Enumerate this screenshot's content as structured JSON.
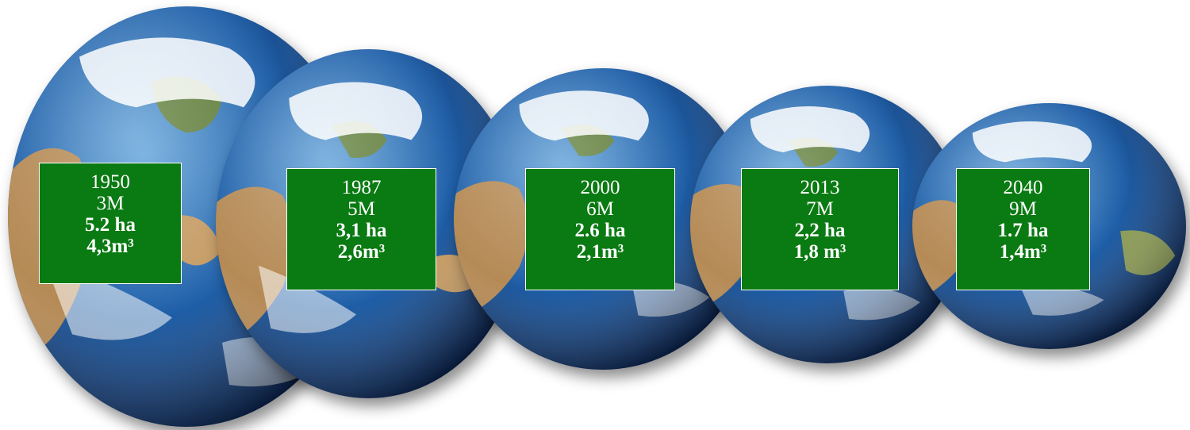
{
  "colors": {
    "box_fill": "#0a7a12",
    "box_border": "#ffffff",
    "text": "#ffffff",
    "ocean": "#1f5fa8",
    "land": "#b58a55",
    "clouds": "#ffffff"
  },
  "globes": [
    {
      "year": "1950",
      "population": "3M",
      "area": "5.2 ha",
      "volume": "4,3m³"
    },
    {
      "year": "1987",
      "population": "5M",
      "area": "3,1 ha",
      "volume": "2,6m³"
    },
    {
      "year": "2000",
      "population": "6M",
      "area": "2.6 ha",
      "volume": "2,1m³"
    },
    {
      "year": "2013",
      "population": "7M",
      "area": "2,2 ha",
      "volume": "1,8 m³"
    },
    {
      "year": "2040",
      "population": "9M",
      "area": "1.7 ha",
      "volume": "1,4m³"
    }
  ]
}
